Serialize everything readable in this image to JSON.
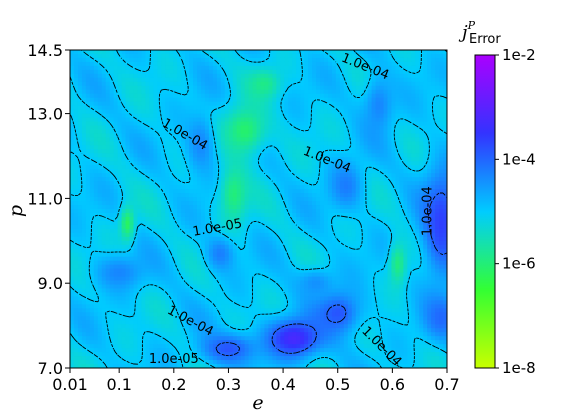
{
  "chart_data": {
    "type": "heatmap",
    "xlabel": "e",
    "ylabel": "p",
    "xlim": [
      0.01,
      0.7
    ],
    "ylim": [
      7.0,
      14.5
    ],
    "x_ticks": [
      "0.01",
      "0.1",
      "0.2",
      "0.3",
      "0.4",
      "0.5",
      "0.6",
      "0.7"
    ],
    "x_tick_values": [
      0.01,
      0.1,
      0.2,
      0.3,
      0.4,
      0.5,
      0.6,
      0.7
    ],
    "y_ticks": [
      "7.0",
      "9.0",
      "11.0",
      "13.0",
      "14.5"
    ],
    "y_tick_values": [
      7.0,
      9.0,
      11.0,
      13.0,
      14.5
    ],
    "colorbar": {
      "label_main": "j",
      "label_sup": "P",
      "label_sub": "Error",
      "scale": "log",
      "ticks": [
        "1e-2",
        "1e-4",
        "1e-6",
        "1e-8"
      ],
      "tick_exponents": [
        -2,
        -4,
        -6,
        -8
      ],
      "colors": [
        "#c8ff00",
        "#33ff33",
        "#00ccff",
        "#3333ff",
        "#aa00ff"
      ]
    },
    "contour_levels": [
      "1.0e-04",
      "1.0e-05"
    ],
    "contour_labels": [
      {
        "text": "1.0e-04",
        "e": 0.55,
        "p": 14.1,
        "angle": 22
      },
      {
        "text": "1.0e-04",
        "e": 0.22,
        "p": 12.5,
        "angle": 30
      },
      {
        "text": "1.0e-04",
        "e": 0.48,
        "p": 11.9,
        "angle": 22
      },
      {
        "text": "1.0e-04",
        "e": 0.665,
        "p": 10.7,
        "angle": -90
      },
      {
        "text": "1.0e-05",
        "e": 0.28,
        "p": 10.3,
        "angle": -10
      },
      {
        "text": "1.0e-04",
        "e": 0.23,
        "p": 8.1,
        "angle": 28
      },
      {
        "text": "1.0e-04",
        "e": 0.58,
        "p": 7.5,
        "angle": 45
      },
      {
        "text": "1.0e-05",
        "e": 0.2,
        "p": 7.2,
        "angle": 0
      }
    ],
    "features": [
      {
        "e": 0.25,
        "p": 12.3,
        "exp": -4.3,
        "sx": 0.028,
        "sy": 0.7
      },
      {
        "e": 0.575,
        "p": 13.2,
        "exp": -4.3,
        "sx": 0.028,
        "sy": 0.7
      },
      {
        "e": 0.515,
        "p": 11.3,
        "exp": -4.2,
        "sx": 0.03,
        "sy": 0.55
      },
      {
        "e": 0.69,
        "p": 10.4,
        "exp": -3.6,
        "sx": 0.035,
        "sy": 1.3
      },
      {
        "e": 0.285,
        "p": 9.7,
        "exp": -4.2,
        "sx": 0.025,
        "sy": 0.4
      },
      {
        "e": 0.1,
        "p": 9.25,
        "exp": -4.3,
        "sx": 0.045,
        "sy": 0.4
      },
      {
        "e": 0.42,
        "p": 7.7,
        "exp": -3.2,
        "sx": 0.05,
        "sy": 0.45
      },
      {
        "e": 0.3,
        "p": 7.45,
        "exp": -3.8,
        "sx": 0.05,
        "sy": 0.35
      },
      {
        "e": 0.5,
        "p": 8.3,
        "exp": -3.8,
        "sx": 0.04,
        "sy": 0.5
      },
      {
        "e": 0.69,
        "p": 8.2,
        "exp": -4.0,
        "sx": 0.03,
        "sy": 0.5
      },
      {
        "e": 0.46,
        "p": 9.0,
        "exp": -4.4,
        "sx": 0.035,
        "sy": 0.35
      },
      {
        "e": 0.33,
        "p": 12.6,
        "exp": -6.1,
        "sx": 0.04,
        "sy": 0.6
      },
      {
        "e": 0.31,
        "p": 11.1,
        "exp": -6.0,
        "sx": 0.025,
        "sy": 0.7
      },
      {
        "e": 0.115,
        "p": 10.4,
        "exp": -6.3,
        "sx": 0.012,
        "sy": 0.4
      },
      {
        "e": 0.61,
        "p": 9.45,
        "exp": -6.0,
        "sx": 0.015,
        "sy": 0.5
      },
      {
        "e": 0.365,
        "p": 13.7,
        "exp": -5.9,
        "sx": 0.03,
        "sy": 0.35
      }
    ]
  }
}
